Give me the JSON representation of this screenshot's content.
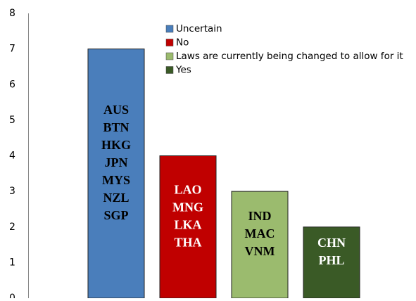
{
  "chart_data": {
    "type": "bar",
    "series": [
      {
        "name": "Uncertain",
        "color": "#4a7ebb",
        "label_color": "#000000",
        "values": [
          7
        ],
        "labels": [
          "AUS",
          "BTN",
          "HKG",
          "JPN",
          "MYS",
          "NZL",
          "SGP"
        ]
      },
      {
        "name": "No",
        "color": "#c00000",
        "label_color": "#ffffff",
        "values": [
          4
        ],
        "labels": [
          "LAO",
          "MNG",
          "LKA",
          "THA"
        ]
      },
      {
        "name": "Laws are currently being changed to allow for it",
        "color": "#9bbb6e",
        "label_color": "#000000",
        "values": [
          3
        ],
        "labels": [
          "IND",
          "MAC",
          "VNM"
        ]
      },
      {
        "name": "Yes",
        "color": "#3a5a26",
        "label_color": "#ffffff",
        "values": [
          2
        ],
        "labels": [
          "CHN",
          "PHL"
        ]
      }
    ],
    "ylim": [
      0,
      8
    ],
    "yticks": [
      0,
      1,
      2,
      3,
      4,
      5,
      6,
      7,
      8
    ],
    "grid": false
  }
}
